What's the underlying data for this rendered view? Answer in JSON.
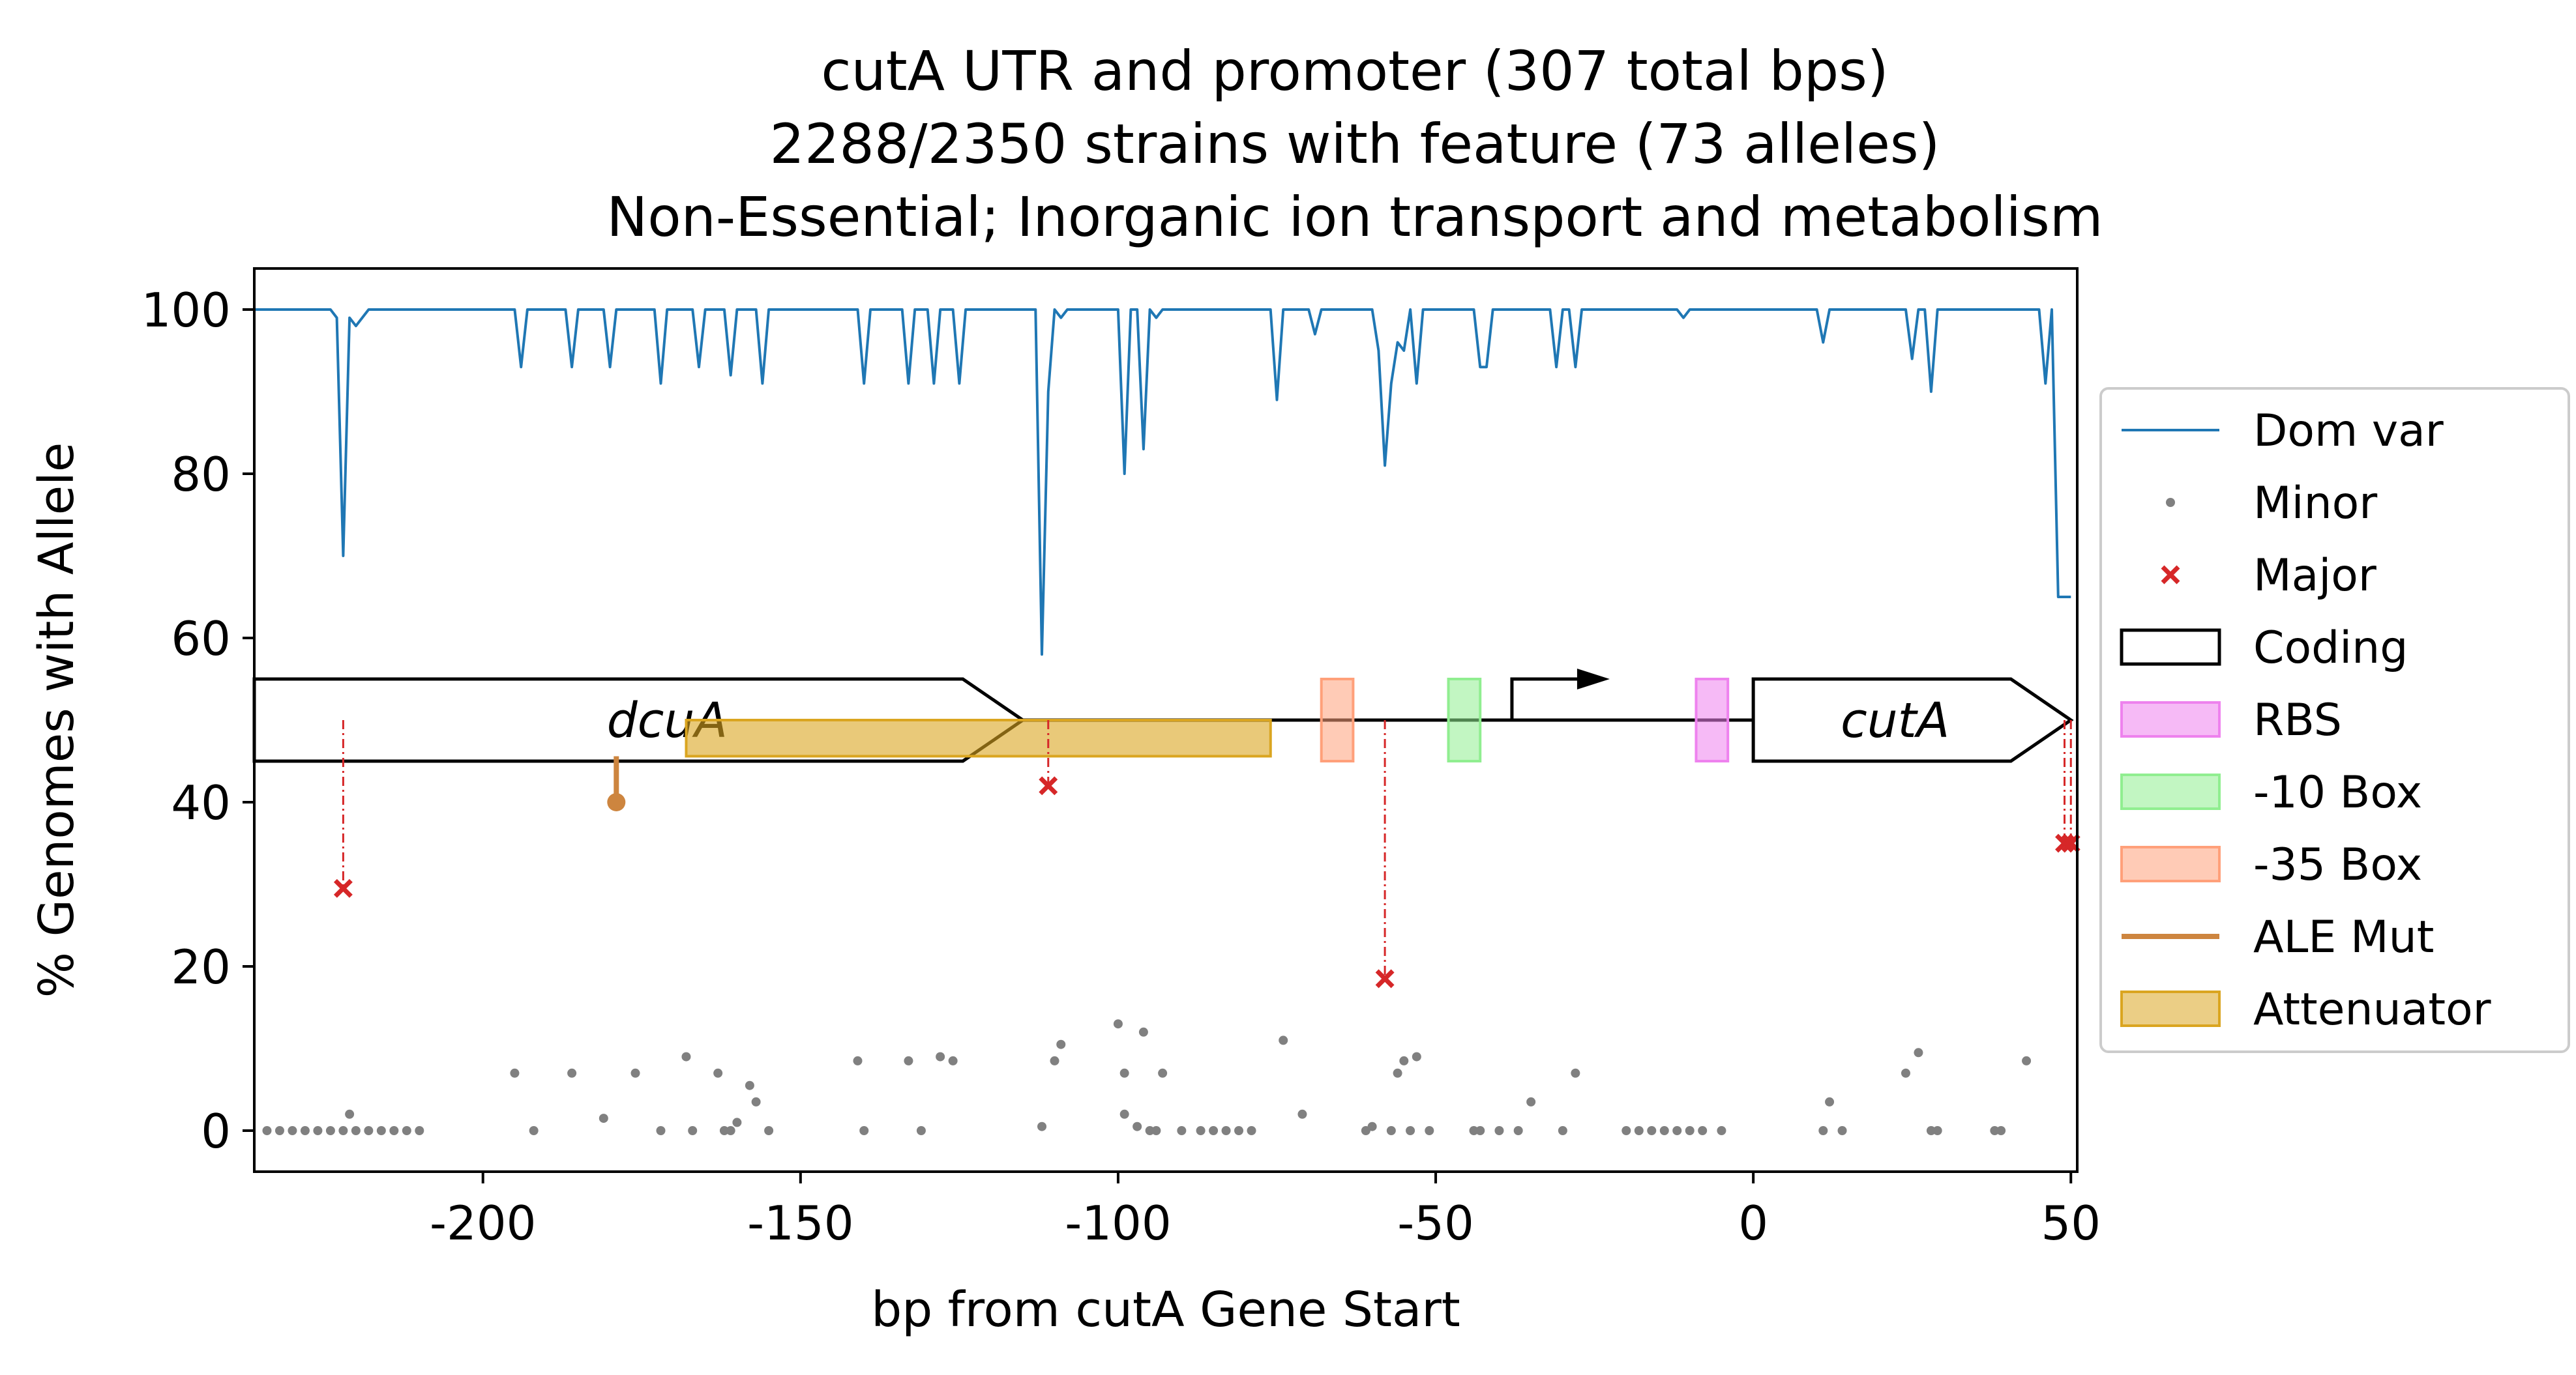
{
  "chart_data": {
    "type": "line",
    "title": [
      "cutA UTR and promoter (307 total bps)",
      "2288/2350 strains with feature (73 alleles)",
      "Non-Essential; Inorganic ion transport and metabolism"
    ],
    "xlabel": "bp from cutA Gene Start",
    "ylabel": "% Genomes with Allele",
    "xlim": [
      -236,
      51
    ],
    "ylim": [
      -5,
      105
    ],
    "xticks": [
      -200,
      -150,
      -100,
      -50,
      0,
      50
    ],
    "xtick_labels": [
      "-200",
      "-150",
      "-100",
      "-50",
      "0",
      "50"
    ],
    "yticks": [
      0,
      20,
      40,
      60,
      80,
      100
    ],
    "ytick_labels": [
      "0",
      "20",
      "40",
      "60",
      "80",
      "100"
    ],
    "grid": false,
    "legend_position": "right, outside plot",
    "colors": {
      "dom_var": "#1f77b4",
      "minor": "#808080",
      "major": "#d62728",
      "rbs": "#ee82ee",
      "ten_box": "#90ee90",
      "thirtyfive_box": "#ffa07a",
      "ale_mut": "#cd853f",
      "attenuator": "#daa520"
    },
    "legend": [
      {
        "key": "dom_var",
        "label": "Dom var",
        "symbol": "line"
      },
      {
        "key": "minor",
        "label": "Minor",
        "symbol": "dot"
      },
      {
        "key": "major",
        "label": "Major",
        "symbol": "x"
      },
      {
        "key": "coding",
        "label": "Coding",
        "symbol": "box"
      },
      {
        "key": "rbs",
        "label": "RBS",
        "symbol": "patch"
      },
      {
        "key": "ten_box",
        "label": "-10 Box",
        "symbol": "patch"
      },
      {
        "key": "thirtyfive_box",
        "label": "-35 Box",
        "symbol": "patch"
      },
      {
        "key": "ale_mut",
        "label": "ALE Mut",
        "symbol": "line"
      },
      {
        "key": "attenuator",
        "label": "Attenuator",
        "symbol": "patch"
      }
    ],
    "dominant_variant": {
      "name": "Dom var",
      "x": [
        -236,
        -224,
        -223,
        -222,
        -221,
        -220,
        -219,
        -218,
        -217,
        -195,
        -194,
        -193,
        -187,
        -186,
        -185,
        -181,
        -180,
        -179,
        -173,
        -172,
        -171,
        -167,
        -166,
        -165,
        -162,
        -161,
        -160,
        -157,
        -156,
        -155,
        -141,
        -140,
        -139,
        -134,
        -133,
        -132,
        -130,
        -129,
        -128,
        -126,
        -125,
        -124,
        -113,
        -112,
        -111,
        -110,
        -109,
        -108,
        -107,
        -106,
        -100,
        -99,
        -98,
        -97,
        -96,
        -95,
        -94,
        -93,
        -92,
        -76,
        -75,
        -74,
        -70,
        -69,
        -68,
        -60,
        -59,
        -58,
        -57,
        -56,
        -55,
        -54,
        -53,
        -52,
        -44,
        -43,
        -42,
        -41,
        -32,
        -31,
        -30,
        -29,
        -28,
        -27,
        -12,
        -11,
        -10,
        10,
        11,
        12,
        24,
        25,
        26,
        27,
        28,
        29,
        45,
        46,
        47,
        48,
        49,
        50
      ],
      "y": [
        100,
        100,
        99,
        70,
        99,
        98,
        99,
        100,
        100,
        100,
        93,
        100,
        100,
        93,
        100,
        100,
        93,
        100,
        100,
        91,
        100,
        100,
        93,
        100,
        100,
        92,
        100,
        100,
        91,
        100,
        100,
        91,
        100,
        100,
        91,
        100,
        100,
        91,
        100,
        100,
        91,
        100,
        100,
        58,
        90,
        100,
        99,
        100,
        100,
        100,
        100,
        80,
        100,
        100,
        83,
        100,
        99,
        100,
        100,
        100,
        89,
        100,
        100,
        97,
        100,
        100,
        95,
        81,
        91,
        96,
        95,
        100,
        91,
        100,
        100,
        93,
        93,
        100,
        100,
        93,
        100,
        100,
        93,
        100,
        100,
        99,
        100,
        100,
        96,
        100,
        100,
        94,
        100,
        100,
        90,
        100,
        100,
        91,
        100,
        65,
        65,
        65
      ]
    },
    "minor_alleles": {
      "x": [
        -234,
        -232,
        -230,
        -228,
        -226,
        -224,
        -222,
        -220,
        -218,
        -216,
        -214,
        -212,
        -210,
        -221,
        -195,
        -192,
        -186,
        -181,
        -176,
        -172,
        -168,
        -167,
        -163,
        -162,
        -161,
        -160,
        -158,
        -157,
        -155,
        -141,
        -140,
        -133,
        -131,
        -128,
        -126,
        -112,
        -110,
        -109,
        -100,
        -99,
        -99,
        -97,
        -96,
        -95,
        -94,
        -93,
        -90,
        -87,
        -85,
        -83,
        -81,
        -79,
        -74,
        -71,
        -61,
        -60,
        -57,
        -56,
        -55,
        -54,
        -53,
        -51,
        -44,
        -43,
        -40,
        -37,
        -35,
        -30,
        -28,
        -20,
        -18,
        -16,
        -14,
        -12,
        -10,
        -8,
        -5,
        11,
        12,
        14,
        24,
        26,
        28,
        29,
        38,
        39,
        43
      ],
      "y": [
        0,
        0,
        0,
        0,
        0,
        0,
        0,
        0,
        0,
        0,
        0,
        0,
        0,
        2,
        7,
        0,
        7,
        1.5,
        7,
        0,
        9,
        0,
        7,
        0,
        0,
        1,
        5.5,
        3.5,
        0,
        8.5,
        0,
        8.5,
        0,
        9,
        8.5,
        0.5,
        8.5,
        10.5,
        13,
        7,
        2,
        0.5,
        12,
        0,
        0,
        7,
        0,
        0,
        0,
        0,
        0,
        0,
        11,
        2,
        0,
        0.5,
        0,
        7,
        8.5,
        0,
        9,
        0,
        0,
        0,
        0,
        0,
        3.5,
        0,
        7,
        0,
        0,
        0,
        0,
        0,
        0,
        0,
        0,
        0,
        3.5,
        0,
        7,
        9.5,
        0,
        0,
        0,
        0,
        8.5
      ]
    },
    "major_alleles": {
      "x": [
        -222,
        -111,
        -58,
        49,
        50
      ],
      "y": [
        29.5,
        42,
        18.5,
        35,
        35
      ]
    },
    "genes": [
      {
        "name": "dcuA",
        "start": -236,
        "end": -115,
        "strand": "+"
      },
      {
        "name": "cutA",
        "start": 0,
        "end": 50,
        "strand": "+"
      }
    ],
    "rbs": [
      {
        "start": -9,
        "end": -4
      }
    ],
    "ten_box": [
      {
        "start": -48,
        "end": -43
      }
    ],
    "thirtyfive_box": [
      {
        "start": -68,
        "end": -63
      }
    ],
    "tss": -38,
    "attenuator": [
      {
        "start": -168,
        "end": -76
      }
    ],
    "ale_mutations": [
      {
        "x": -179,
        "y": 40
      }
    ]
  }
}
